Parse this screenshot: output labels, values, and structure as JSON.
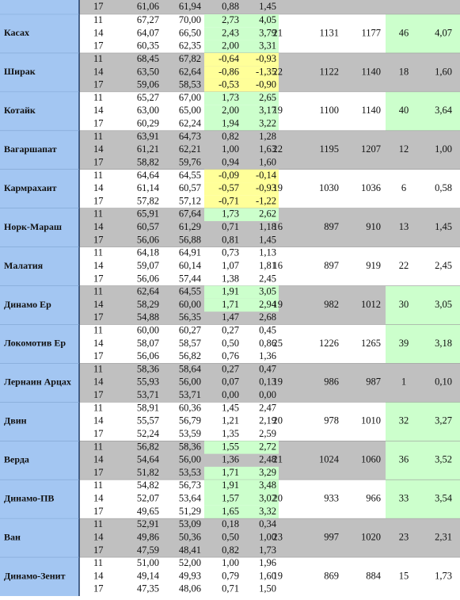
{
  "top_row": {
    "age": "17",
    "values": [
      "61,06",
      "61,94",
      "0,88",
      "1,45"
    ]
  },
  "teams": [
    {
      "name": "Касах",
      "bg": "white",
      "rows": [
        {
          "age": "11",
          "values": [
            "67,27",
            "70,00",
            "2,73",
            "4,05"
          ],
          "highlight": "green"
        },
        {
          "age": "14",
          "values": [
            "64,07",
            "66,50",
            "2,43",
            "3,79"
          ],
          "highlight": "green"
        },
        {
          "age": "17",
          "values": [
            "60,35",
            "62,35",
            "2,00",
            "3,31"
          ],
          "highlight": "green"
        }
      ],
      "stats": [
        "21",
        "1131",
        "1177",
        "46",
        "4,07"
      ],
      "stats_highlight": "green"
    },
    {
      "name": "Ширак",
      "bg": "gray",
      "rows": [
        {
          "age": "11",
          "values": [
            "68,45",
            "67,82",
            "-0,64",
            "-0,93"
          ],
          "highlight": "yellow"
        },
        {
          "age": "14",
          "values": [
            "63,50",
            "62,64",
            "-0,86",
            "-1,35"
          ],
          "highlight": "yellow"
        },
        {
          "age": "17",
          "values": [
            "59,06",
            "58,53",
            "-0,53",
            "-0,90"
          ],
          "highlight": "yellow"
        }
      ],
      "stats": [
        "22",
        "1122",
        "1140",
        "18",
        "1,60"
      ],
      "stats_highlight": null
    },
    {
      "name": "Котайк",
      "bg": "white",
      "rows": [
        {
          "age": "11",
          "values": [
            "65,27",
            "67,00",
            "1,73",
            "2,65"
          ],
          "highlight": "green"
        },
        {
          "age": "14",
          "values": [
            "63,00",
            "65,00",
            "2,00",
            "3,17"
          ],
          "highlight": "green"
        },
        {
          "age": "17",
          "values": [
            "60,29",
            "62,24",
            "1,94",
            "3,22"
          ],
          "highlight": "green"
        }
      ],
      "stats": [
        "19",
        "1100",
        "1140",
        "40",
        "3,64"
      ],
      "stats_highlight": "green"
    },
    {
      "name": "Вагаршапат",
      "bg": "gray",
      "rows": [
        {
          "age": "11",
          "values": [
            "63,91",
            "64,73",
            "0,82",
            "1,28"
          ],
          "highlight": null
        },
        {
          "age": "14",
          "values": [
            "61,21",
            "62,21",
            "1,00",
            "1,63"
          ],
          "highlight": null
        },
        {
          "age": "17",
          "values": [
            "58,82",
            "59,76",
            "0,94",
            "1,60"
          ],
          "highlight": null
        }
      ],
      "stats": [
        "22",
        "1195",
        "1207",
        "12",
        "1,00"
      ],
      "stats_highlight": null
    },
    {
      "name": "Кармрахаит",
      "bg": "white",
      "rows": [
        {
          "age": "11",
          "values": [
            "64,64",
            "64,55",
            "-0,09",
            "-0,14"
          ],
          "highlight": "yellow"
        },
        {
          "age": "14",
          "values": [
            "61,14",
            "60,57",
            "-0,57",
            "-0,93"
          ],
          "highlight": "yellow"
        },
        {
          "age": "17",
          "values": [
            "57,82",
            "57,12",
            "-0,71",
            "-1,22"
          ],
          "highlight": "yellow"
        }
      ],
      "stats": [
        "19",
        "1030",
        "1036",
        "6",
        "0,58"
      ],
      "stats_highlight": null
    },
    {
      "name": "Норк-Мараш",
      "bg": "gray",
      "rows": [
        {
          "age": "11",
          "values": [
            "65,91",
            "67,64",
            "1,73",
            "2,62"
          ],
          "highlight": "green"
        },
        {
          "age": "14",
          "values": [
            "60,57",
            "61,29",
            "0,71",
            "1,18"
          ],
          "highlight": null
        },
        {
          "age": "17",
          "values": [
            "56,06",
            "56,88",
            "0,81",
            "1,45"
          ],
          "highlight": null
        }
      ],
      "stats": [
        "16",
        "897",
        "910",
        "13",
        "1,45"
      ],
      "stats_highlight": null
    },
    {
      "name": "Малатия",
      "bg": "white",
      "rows": [
        {
          "age": "11",
          "values": [
            "64,18",
            "64,91",
            "0,73",
            "1,13"
          ],
          "highlight": null
        },
        {
          "age": "14",
          "values": [
            "59,07",
            "60,14",
            "1,07",
            "1,81"
          ],
          "highlight": null
        },
        {
          "age": "17",
          "values": [
            "56,06",
            "57,44",
            "1,38",
            "2,45"
          ],
          "highlight": null
        }
      ],
      "stats": [
        "16",
        "897",
        "919",
        "22",
        "2,45"
      ],
      "stats_highlight": null
    },
    {
      "name": "Динамо Ер",
      "bg": "gray",
      "rows": [
        {
          "age": "11",
          "values": [
            "62,64",
            "64,55",
            "1,91",
            "3,05"
          ],
          "highlight": "green"
        },
        {
          "age": "14",
          "values": [
            "58,29",
            "60,00",
            "1,71",
            "2,94"
          ],
          "highlight": "green"
        },
        {
          "age": "17",
          "values": [
            "54,88",
            "56,35",
            "1,47",
            "2,68"
          ],
          "highlight": null
        }
      ],
      "stats": [
        "19",
        "982",
        "1012",
        "30",
        "3,05"
      ],
      "stats_highlight": "green"
    },
    {
      "name": "Локомотив Ер",
      "bg": "white",
      "rows": [
        {
          "age": "11",
          "values": [
            "60,00",
            "60,27",
            "0,27",
            "0,45"
          ],
          "highlight": null
        },
        {
          "age": "14",
          "values": [
            "58,07",
            "58,57",
            "0,50",
            "0,86"
          ],
          "highlight": null
        },
        {
          "age": "17",
          "values": [
            "56,06",
            "56,82",
            "0,76",
            "1,36"
          ],
          "highlight": null
        }
      ],
      "stats": [
        "25",
        "1226",
        "1265",
        "39",
        "3,18"
      ],
      "stats_highlight": "green"
    },
    {
      "name": "Лернаин Арцах",
      "bg": "gray",
      "rows": [
        {
          "age": "11",
          "values": [
            "58,36",
            "58,64",
            "0,27",
            "0,47"
          ],
          "highlight": null
        },
        {
          "age": "14",
          "values": [
            "55,93",
            "56,00",
            "0,07",
            "0,13"
          ],
          "highlight": null
        },
        {
          "age": "17",
          "values": [
            "53,71",
            "53,71",
            "0,00",
            "0,00"
          ],
          "highlight": null
        }
      ],
      "stats": [
        "19",
        "986",
        "987",
        "1",
        "0,10"
      ],
      "stats_highlight": null
    },
    {
      "name": "Двин",
      "bg": "white",
      "rows": [
        {
          "age": "11",
          "values": [
            "58,91",
            "60,36",
            "1,45",
            "2,47"
          ],
          "highlight": null
        },
        {
          "age": "14",
          "values": [
            "55,57",
            "56,79",
            "1,21",
            "2,19"
          ],
          "highlight": null
        },
        {
          "age": "17",
          "values": [
            "52,24",
            "53,59",
            "1,35",
            "2,59"
          ],
          "highlight": null
        }
      ],
      "stats": [
        "20",
        "978",
        "1010",
        "32",
        "3,27"
      ],
      "stats_highlight": "green"
    },
    {
      "name": "Верда",
      "bg": "gray",
      "rows": [
        {
          "age": "11",
          "values": [
            "56,82",
            "58,36",
            "1,55",
            "2,72"
          ],
          "highlight": "green"
        },
        {
          "age": "14",
          "values": [
            "54,64",
            "56,00",
            "1,36",
            "2,48"
          ],
          "highlight": null
        },
        {
          "age": "17",
          "values": [
            "51,82",
            "53,53",
            "1,71",
            "3,29"
          ],
          "highlight": "green"
        }
      ],
      "stats": [
        "21",
        "1024",
        "1060",
        "36",
        "3,52"
      ],
      "stats_highlight": "green"
    },
    {
      "name": "Динамо-ПВ",
      "bg": "white",
      "rows": [
        {
          "age": "11",
          "values": [
            "54,82",
            "56,73",
            "1,91",
            "3,48"
          ],
          "highlight": "green"
        },
        {
          "age": "14",
          "values": [
            "52,07",
            "53,64",
            "1,57",
            "3,02"
          ],
          "highlight": "green"
        },
        {
          "age": "17",
          "values": [
            "49,65",
            "51,29",
            "1,65",
            "3,32"
          ],
          "highlight": "green"
        }
      ],
      "stats": [
        "20",
        "933",
        "966",
        "33",
        "3,54"
      ],
      "stats_highlight": "green"
    },
    {
      "name": "Ван",
      "bg": "gray",
      "rows": [
        {
          "age": "11",
          "values": [
            "52,91",
            "53,09",
            "0,18",
            "0,34"
          ],
          "highlight": null
        },
        {
          "age": "14",
          "values": [
            "49,86",
            "50,36",
            "0,50",
            "1,00"
          ],
          "highlight": null
        },
        {
          "age": "17",
          "values": [
            "47,59",
            "48,41",
            "0,82",
            "1,73"
          ],
          "highlight": null
        }
      ],
      "stats": [
        "23",
        "997",
        "1020",
        "23",
        "2,31"
      ],
      "stats_highlight": null
    },
    {
      "name": "Динамо-Зенит",
      "bg": "white",
      "rows": [
        {
          "age": "11",
          "values": [
            "51,00",
            "52,00",
            "1,00",
            "1,96"
          ],
          "highlight": null
        },
        {
          "age": "14",
          "values": [
            "49,14",
            "49,93",
            "0,79",
            "1,60"
          ],
          "highlight": null
        },
        {
          "age": "17",
          "values": [
            "47,35",
            "48,06",
            "0,71",
            "1,50"
          ],
          "highlight": null
        }
      ],
      "stats": [
        "19",
        "869",
        "884",
        "15",
        "1,73"
      ],
      "stats_highlight": null
    }
  ]
}
